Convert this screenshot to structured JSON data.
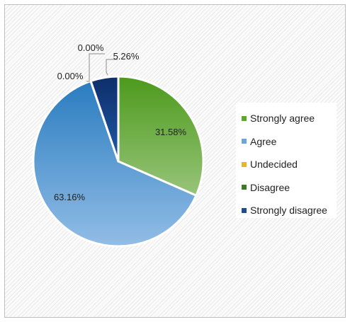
{
  "chart_data": {
    "type": "pie",
    "categories": [
      "Strongly agree",
      "Agree",
      "Undecided",
      "Disagree",
      "Strongly disagree"
    ],
    "values": [
      31.58,
      63.16,
      0.0,
      0.0,
      5.26
    ],
    "labels": [
      "31.58%",
      "63.16%",
      "0.00%",
      "0.00%",
      "5.26%"
    ],
    "colors": [
      "#6aab3e",
      "#5b9bd5",
      "#ffc000",
      "#3a7d22",
      "#1f4e8c"
    ],
    "legend": {
      "position": "right",
      "items": [
        "Strongly agree",
        "Agree",
        "Undecided",
        "Disagree",
        "Strongly disagree"
      ]
    }
  }
}
